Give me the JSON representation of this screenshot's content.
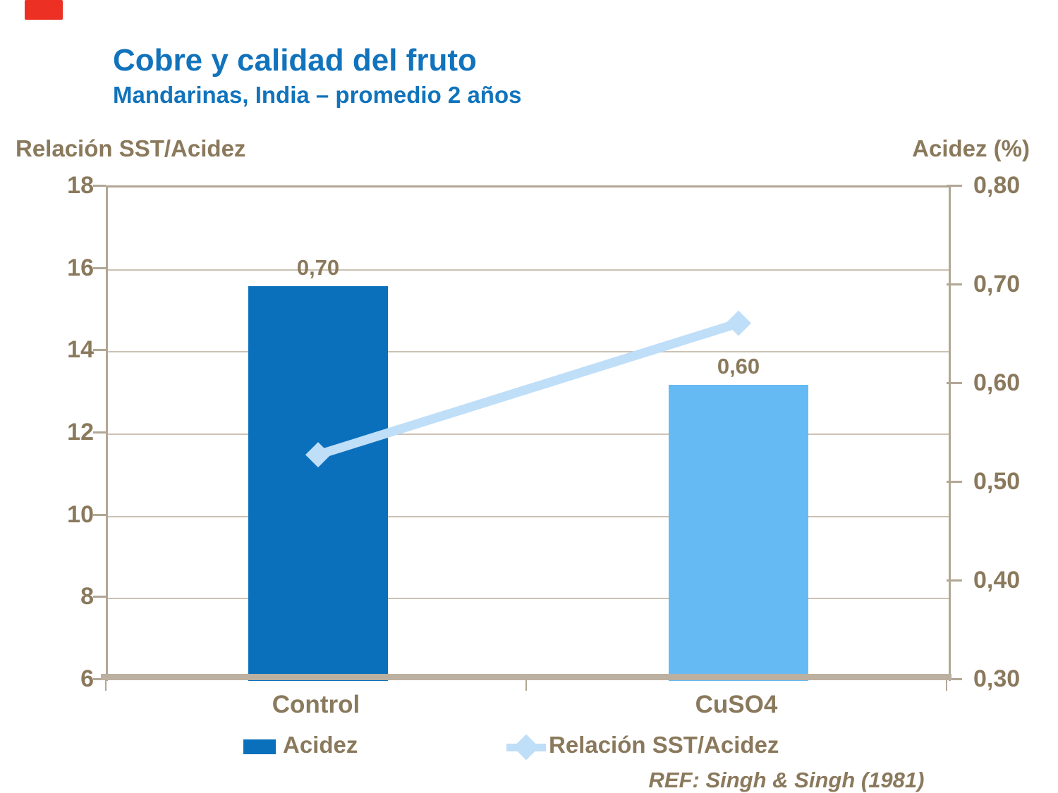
{
  "slide": {
    "title": "Cobre y calidad del fruto",
    "subtitle": "Mandarinas, India – promedio 2 años",
    "reference": "REF: Singh & Singh (1981)",
    "accent_red_color": "#ED3024",
    "title_color": "#1173BC",
    "text_color": "#8A795C"
  },
  "axes": {
    "left_title": "Relación SST/Acidez",
    "right_title": "Acidez (%)",
    "left_ticks": [
      "18",
      "16",
      "14",
      "12",
      "10",
      "8",
      "6"
    ],
    "right_ticks": [
      "0,80",
      "0,70",
      "0,60",
      "0,50",
      "0,40",
      "0,30"
    ]
  },
  "legend": {
    "items": [
      {
        "label": "Acidez",
        "type": "bar",
        "color": "#0A70BC"
      },
      {
        "label": "Relación SST/Acidez",
        "type": "line-diamond",
        "color": "#BFDEF8"
      }
    ]
  },
  "chart_data": {
    "type": "bar+line",
    "title": "Cobre y calidad del fruto — Mandarinas, India – promedio 2 años",
    "categories": [
      "Control",
      "CuSO4"
    ],
    "series": [
      {
        "name": "Acidez",
        "type": "bar",
        "axis": "right",
        "values": [
          0.7,
          0.6
        ],
        "labels": [
          "0,70",
          "0,60"
        ],
        "colors": [
          "#0A70BC",
          "#66BAF3"
        ]
      },
      {
        "name": "Relación SST/Acidez",
        "type": "line",
        "axis": "left",
        "marker": "diamond",
        "values": [
          11.5,
          14.7
        ],
        "color": "#BFDEF8"
      }
    ],
    "left_axis": {
      "title": "Relación SST/Acidez",
      "min": 6,
      "max": 18,
      "tick_step": 2
    },
    "right_axis": {
      "title": "Acidez (%)",
      "min": 0.3,
      "max": 0.8,
      "tick_step": 0.1
    },
    "grid": "horizontal gridlines at left-axis ticks",
    "legend_position": "bottom",
    "reference": "REF: Singh & Singh (1981)"
  }
}
